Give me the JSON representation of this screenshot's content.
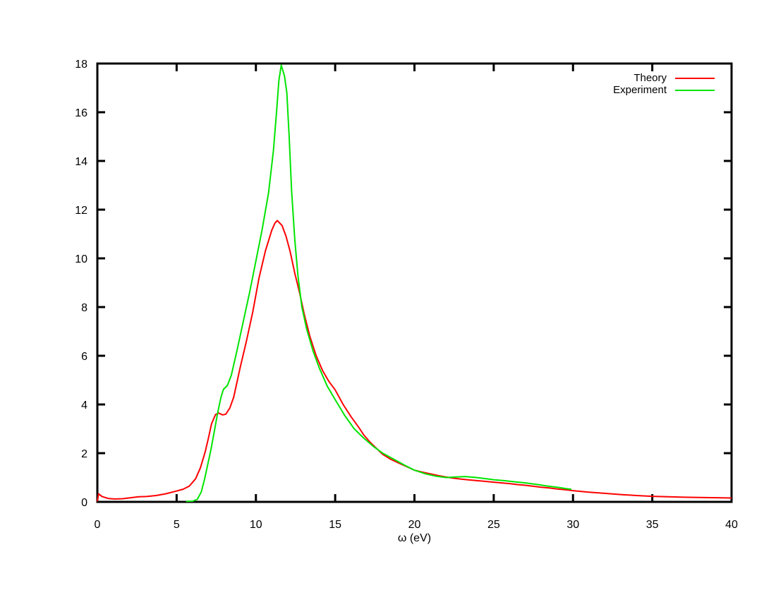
{
  "figure": {
    "background": "#ffffff",
    "axis_color": "#000000"
  },
  "chart_data": {
    "type": "line",
    "title": "",
    "xlabel": "ω (eV)",
    "ylabel": "",
    "xlim": [
      0,
      40
    ],
    "ylim": [
      0,
      18
    ],
    "xticks": [
      0,
      5,
      10,
      15,
      20,
      25,
      30,
      35,
      40
    ],
    "yticks": [
      0,
      2,
      4,
      6,
      8,
      10,
      12,
      14,
      16,
      18
    ],
    "grid": false,
    "legend_position": "top-right-inside",
    "series": [
      {
        "name": "Theory",
        "color": "#ff0000",
        "points": [
          [
            0,
            0.02
          ],
          [
            0.08,
            0.33
          ],
          [
            0.3,
            0.22
          ],
          [
            0.7,
            0.14
          ],
          [
            1.1,
            0.12
          ],
          [
            1.6,
            0.13
          ],
          [
            2.1,
            0.17
          ],
          [
            2.6,
            0.21
          ],
          [
            3.1,
            0.22
          ],
          [
            3.7,
            0.26
          ],
          [
            4.3,
            0.33
          ],
          [
            4.9,
            0.43
          ],
          [
            5.4,
            0.52
          ],
          [
            5.8,
            0.65
          ],
          [
            6.2,
            0.95
          ],
          [
            6.5,
            1.4
          ],
          [
            6.8,
            2.05
          ],
          [
            7.0,
            2.6
          ],
          [
            7.2,
            3.2
          ],
          [
            7.45,
            3.58
          ],
          [
            7.65,
            3.65
          ],
          [
            7.9,
            3.57
          ],
          [
            8.1,
            3.6
          ],
          [
            8.35,
            3.85
          ],
          [
            8.6,
            4.3
          ],
          [
            9.0,
            5.5
          ],
          [
            9.4,
            6.6
          ],
          [
            9.8,
            7.8
          ],
          [
            10.2,
            9.2
          ],
          [
            10.6,
            10.3
          ],
          [
            11.0,
            11.15
          ],
          [
            11.2,
            11.45
          ],
          [
            11.35,
            11.55
          ],
          [
            11.65,
            11.35
          ],
          [
            11.9,
            10.9
          ],
          [
            12.15,
            10.3
          ],
          [
            12.45,
            9.4
          ],
          [
            12.75,
            8.6
          ],
          [
            13.05,
            7.7
          ],
          [
            13.4,
            6.8
          ],
          [
            13.8,
            6.0
          ],
          [
            14.2,
            5.4
          ],
          [
            14.6,
            4.95
          ],
          [
            15.0,
            4.6
          ],
          [
            15.5,
            4.0
          ],
          [
            16.0,
            3.5
          ],
          [
            16.5,
            3.05
          ],
          [
            16.8,
            2.75
          ],
          [
            17.2,
            2.45
          ],
          [
            17.6,
            2.2
          ],
          [
            18.0,
            1.95
          ],
          [
            18.5,
            1.75
          ],
          [
            19.0,
            1.6
          ],
          [
            19.5,
            1.45
          ],
          [
            20.0,
            1.3
          ],
          [
            20.5,
            1.22
          ],
          [
            21.0,
            1.15
          ],
          [
            21.5,
            1.08
          ],
          [
            22.0,
            1.02
          ],
          [
            22.5,
            0.97
          ],
          [
            23.0,
            0.93
          ],
          [
            23.5,
            0.9
          ],
          [
            24.0,
            0.87
          ],
          [
            24.5,
            0.84
          ],
          [
            25.0,
            0.81
          ],
          [
            25.5,
            0.78
          ],
          [
            26.0,
            0.75
          ],
          [
            26.5,
            0.71
          ],
          [
            27.0,
            0.68
          ],
          [
            27.5,
            0.64
          ],
          [
            28.0,
            0.6
          ],
          [
            28.5,
            0.57
          ],
          [
            29.0,
            0.53
          ],
          [
            29.5,
            0.5
          ],
          [
            30.0,
            0.46
          ],
          [
            31,
            0.4
          ],
          [
            32,
            0.35
          ],
          [
            33,
            0.3
          ],
          [
            34,
            0.26
          ],
          [
            35,
            0.23
          ],
          [
            36,
            0.21
          ],
          [
            37,
            0.19
          ],
          [
            38,
            0.18
          ],
          [
            39,
            0.17
          ],
          [
            40,
            0.16
          ]
        ]
      },
      {
        "name": "Experiment",
        "color": "#00e400",
        "points": [
          [
            5.6,
            0.02
          ],
          [
            6.0,
            0.03
          ],
          [
            6.3,
            0.1
          ],
          [
            6.55,
            0.4
          ],
          [
            6.75,
            0.9
          ],
          [
            6.95,
            1.5
          ],
          [
            7.15,
            2.1
          ],
          [
            7.35,
            2.8
          ],
          [
            7.6,
            3.7
          ],
          [
            7.8,
            4.3
          ],
          [
            7.95,
            4.62
          ],
          [
            8.2,
            4.78
          ],
          [
            8.45,
            5.2
          ],
          [
            8.8,
            6.2
          ],
          [
            9.2,
            7.4
          ],
          [
            9.6,
            8.6
          ],
          [
            10.0,
            9.9
          ],
          [
            10.4,
            11.2
          ],
          [
            10.8,
            12.7
          ],
          [
            11.1,
            14.4
          ],
          [
            11.3,
            16.0
          ],
          [
            11.45,
            17.3
          ],
          [
            11.6,
            17.93
          ],
          [
            11.8,
            17.5
          ],
          [
            11.95,
            16.8
          ],
          [
            12.1,
            15.0
          ],
          [
            12.25,
            12.8
          ],
          [
            12.45,
            10.8
          ],
          [
            12.65,
            9.3
          ],
          [
            12.9,
            8.0
          ],
          [
            13.2,
            7.1
          ],
          [
            13.6,
            6.2
          ],
          [
            14.0,
            5.5
          ],
          [
            14.5,
            4.75
          ],
          [
            15.0,
            4.2
          ],
          [
            15.6,
            3.55
          ],
          [
            16.2,
            3.0
          ],
          [
            16.8,
            2.62
          ],
          [
            17.4,
            2.28
          ],
          [
            18.0,
            2.0
          ],
          [
            18.7,
            1.75
          ],
          [
            19.4,
            1.5
          ],
          [
            20.0,
            1.3
          ],
          [
            20.7,
            1.15
          ],
          [
            21.4,
            1.05
          ],
          [
            22.0,
            1.0
          ],
          [
            22.6,
            1.02
          ],
          [
            23.2,
            1.04
          ],
          [
            23.8,
            1.01
          ],
          [
            24.4,
            0.96
          ],
          [
            25.0,
            0.91
          ],
          [
            25.7,
            0.87
          ],
          [
            26.4,
            0.82
          ],
          [
            27.0,
            0.78
          ],
          [
            27.7,
            0.72
          ],
          [
            28.4,
            0.65
          ],
          [
            29.0,
            0.6
          ],
          [
            29.5,
            0.55
          ],
          [
            29.9,
            0.52
          ]
        ]
      }
    ]
  }
}
